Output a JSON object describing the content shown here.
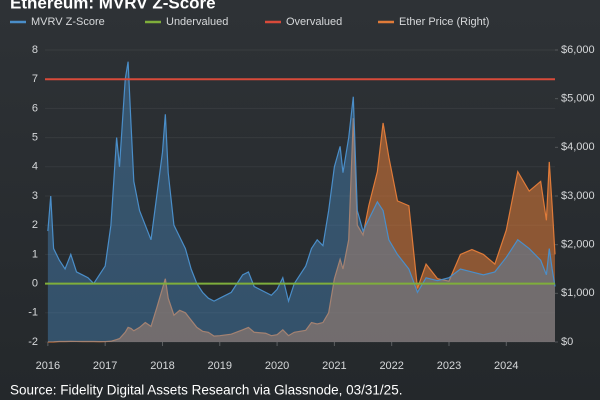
{
  "chart_data": {
    "type": "area",
    "title": "Ethereum: MVRV Z-Score",
    "source": "Source: Fidelity Digital Assets Research via Glassnode, 03/31/25.",
    "x": [
      2016.0,
      2016.05,
      2016.1,
      2016.2,
      2016.3,
      2016.4,
      2016.5,
      2016.6,
      2016.7,
      2016.8,
      2016.9,
      2017.0,
      2017.1,
      2017.2,
      2017.25,
      2017.35,
      2017.4,
      2017.45,
      2017.5,
      2017.6,
      2017.7,
      2017.8,
      2017.9,
      2018.0,
      2018.05,
      2018.1,
      2018.2,
      2018.3,
      2018.4,
      2018.5,
      2018.6,
      2018.7,
      2018.8,
      2018.9,
      2019.0,
      2019.2,
      2019.4,
      2019.5,
      2019.6,
      2019.8,
      2019.9,
      2020.0,
      2020.1,
      2020.2,
      2020.3,
      2020.5,
      2020.6,
      2020.7,
      2020.8,
      2020.9,
      2021.0,
      2021.1,
      2021.15,
      2021.25,
      2021.33,
      2021.4,
      2021.5,
      2021.6,
      2021.75,
      2021.85,
      2021.95,
      2022.1,
      2022.3,
      2022.45,
      2022.6,
      2022.8,
      2023.0,
      2023.2,
      2023.4,
      2023.6,
      2023.8,
      2024.0,
      2024.2,
      2024.4,
      2024.6,
      2024.7,
      2024.75,
      2024.8,
      2024.85
    ],
    "series": [
      {
        "name": "MVRV Z-Score",
        "color": "#4a8ec9",
        "axis": "y",
        "values": [
          1.8,
          3.0,
          1.2,
          0.8,
          0.5,
          1.0,
          0.4,
          0.3,
          0.2,
          0.0,
          0.3,
          0.6,
          2.0,
          5.0,
          4.0,
          7.0,
          7.6,
          5.5,
          3.5,
          2.5,
          2.0,
          1.5,
          3.0,
          4.5,
          5.8,
          3.8,
          2.0,
          1.6,
          1.2,
          0.5,
          0.0,
          -0.3,
          -0.5,
          -0.6,
          -0.5,
          -0.3,
          0.3,
          0.4,
          -0.1,
          -0.3,
          -0.4,
          -0.2,
          0.2,
          -0.6,
          0.0,
          0.6,
          1.2,
          1.5,
          1.3,
          2.5,
          4.0,
          4.7,
          3.8,
          5.0,
          6.4,
          2.5,
          1.8,
          2.2,
          2.8,
          2.5,
          1.5,
          1.0,
          0.5,
          -0.3,
          0.2,
          0.1,
          0.2,
          0.5,
          0.4,
          0.3,
          0.4,
          0.9,
          1.5,
          1.2,
          0.8,
          0.3,
          1.2,
          0.5,
          -0.1
        ]
      },
      {
        "name": "Ether Price (Right)",
        "color": "#e07b39",
        "axis": "y2",
        "values": [
          1,
          1,
          3,
          10,
          10,
          13,
          12,
          11,
          12,
          10,
          8,
          9,
          15,
          50,
          70,
          200,
          300,
          280,
          230,
          300,
          400,
          320,
          700,
          1100,
          1300,
          900,
          550,
          650,
          600,
          450,
          300,
          220,
          200,
          120,
          130,
          160,
          250,
          300,
          200,
          180,
          130,
          150,
          250,
          130,
          200,
          240,
          400,
          370,
          400,
          600,
          1300,
          1700,
          1500,
          2100,
          4600,
          2400,
          2200,
          2800,
          3500,
          4500,
          3800,
          2900,
          2800,
          1100,
          1600,
          1300,
          1250,
          1800,
          1900,
          1800,
          1600,
          2300,
          3500,
          3100,
          3300,
          2500,
          3700,
          2800,
          1800
        ]
      }
    ],
    "reference_lines": [
      {
        "name": "Undervalued",
        "color": "#7fae3b",
        "value": 0
      },
      {
        "name": "Overvalued",
        "color": "#d84a3a",
        "value": 7
      }
    ],
    "xlim": [
      2015.95,
      2024.85
    ],
    "xticks": [
      2016,
      2017,
      2018,
      2019,
      2020,
      2021,
      2022,
      2023,
      2024
    ],
    "ylim": [
      -2,
      8
    ],
    "yticks": [
      -2,
      -1,
      0,
      1,
      2,
      3,
      4,
      5,
      6,
      7,
      8
    ],
    "y2lim": [
      0,
      6000
    ],
    "y2ticks": [
      {
        "value": 0,
        "label": "$0"
      },
      {
        "value": 1000,
        "label": "$1,000"
      },
      {
        "value": 2000,
        "label": "$2,000"
      },
      {
        "value": 3000,
        "label": "$3,000"
      },
      {
        "value": 4000,
        "label": "$4,000"
      },
      {
        "value": 5000,
        "label": "$5,000"
      },
      {
        "value": 6000,
        "label": "$6,000"
      }
    ],
    "grid": true
  }
}
